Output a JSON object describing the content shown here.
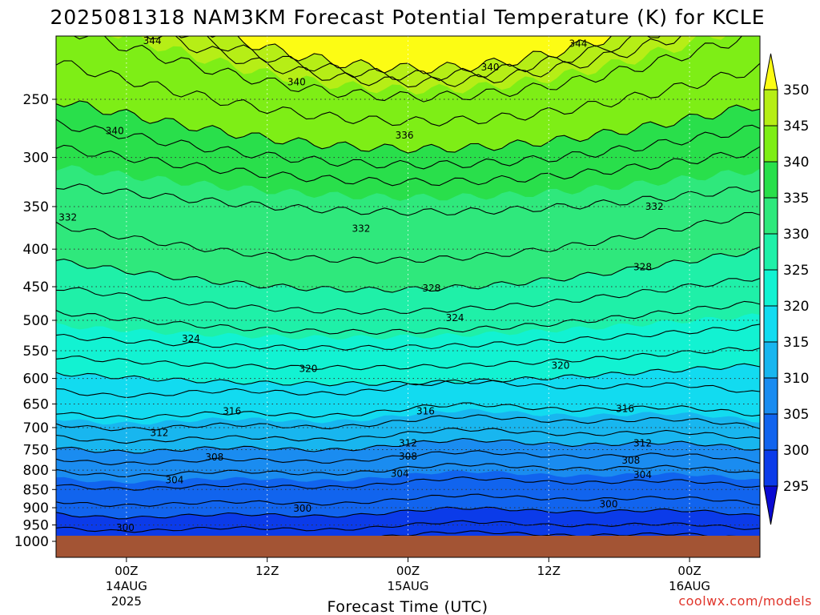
{
  "chart_data": {
    "type": "heatmap",
    "title": "2025081318 NAM3KM Forecast Potential Temperature (K) for KCLE",
    "xlabel": "Forecast Time (UTC)",
    "ylabel": "",
    "y_scale": "log",
    "y_ticks": [
      250,
      300,
      350,
      400,
      450,
      500,
      550,
      600,
      650,
      700,
      750,
      800,
      850,
      900,
      950,
      1000
    ],
    "ylim": [
      1000,
      200
    ],
    "x_ticks": [
      {
        "label": "00Z",
        "date": "14AUG",
        "year": "2025"
      },
      {
        "label": "12Z",
        "date": "",
        "year": ""
      },
      {
        "label": "00Z",
        "date": "15AUG",
        "year": ""
      },
      {
        "label": "12Z",
        "date": "",
        "year": ""
      },
      {
        "label": "00Z",
        "date": "16AUG",
        "year": ""
      }
    ],
    "x_hours": [
      6,
      18,
      30,
      42,
      54
    ],
    "xlim": [
      0,
      60
    ],
    "grid": true,
    "colorbar": {
      "levels": [
        295,
        300,
        305,
        310,
        315,
        320,
        325,
        330,
        335,
        340,
        345,
        350
      ],
      "labels": [
        "350",
        "345",
        "340",
        "335",
        "330",
        "325",
        "320",
        "315",
        "310",
        "305",
        "300",
        "295"
      ],
      "colors": [
        "#0a0ad2",
        "#0b3be9",
        "#1164ee",
        "#1a8cf0",
        "#18b6ef",
        "#12dbf0",
        "#12f2d2",
        "#1ff0a8",
        "#2fe87c",
        "#29df4b",
        "#7eee16",
        "#b6ee16",
        "#fcfc14"
      ]
    },
    "contour_levels": [
      300,
      304,
      308,
      312,
      316,
      320,
      324,
      328,
      332,
      336,
      340,
      344
    ],
    "contour_labels": [
      {
        "value": "344",
        "time": 8.2,
        "p": 208
      },
      {
        "value": "344",
        "time": 44.5,
        "p": 210
      },
      {
        "value": "340",
        "time": 37,
        "p": 226
      },
      {
        "value": "340",
        "time": 20.5,
        "p": 237
      },
      {
        "value": "340",
        "time": 5,
        "p": 276
      },
      {
        "value": "336",
        "time": 29.7,
        "p": 280
      },
      {
        "value": "332",
        "time": 1,
        "p": 362
      },
      {
        "value": "332",
        "time": 26,
        "p": 375
      },
      {
        "value": "332",
        "time": 51,
        "p": 350
      },
      {
        "value": "328",
        "time": 50,
        "p": 423
      },
      {
        "value": "328",
        "time": 32,
        "p": 452
      },
      {
        "value": "324",
        "time": 34,
        "p": 496
      },
      {
        "value": "324",
        "time": 11.5,
        "p": 530
      },
      {
        "value": "320",
        "time": 21.5,
        "p": 582
      },
      {
        "value": "320",
        "time": 43,
        "p": 576
      },
      {
        "value": "316",
        "time": 15,
        "p": 665
      },
      {
        "value": "316",
        "time": 31.5,
        "p": 665
      },
      {
        "value": "316",
        "time": 48.5,
        "p": 660
      },
      {
        "value": "312",
        "time": 8.8,
        "p": 712
      },
      {
        "value": "312",
        "time": 30,
        "p": 735
      },
      {
        "value": "312",
        "time": 50,
        "p": 735
      },
      {
        "value": "308",
        "time": 13.5,
        "p": 768
      },
      {
        "value": "308",
        "time": 30,
        "p": 766
      },
      {
        "value": "308",
        "time": 49,
        "p": 776
      },
      {
        "value": "304",
        "time": 10.1,
        "p": 825
      },
      {
        "value": "304",
        "time": 29.3,
        "p": 809
      },
      {
        "value": "304",
        "time": 50,
        "p": 812
      },
      {
        "value": "300",
        "time": 5.9,
        "p": 958
      },
      {
        "value": "300",
        "time": 21,
        "p": 902
      },
      {
        "value": "300",
        "time": 47.1,
        "p": 890
      }
    ]
  },
  "credit": "coolwx.com/models"
}
